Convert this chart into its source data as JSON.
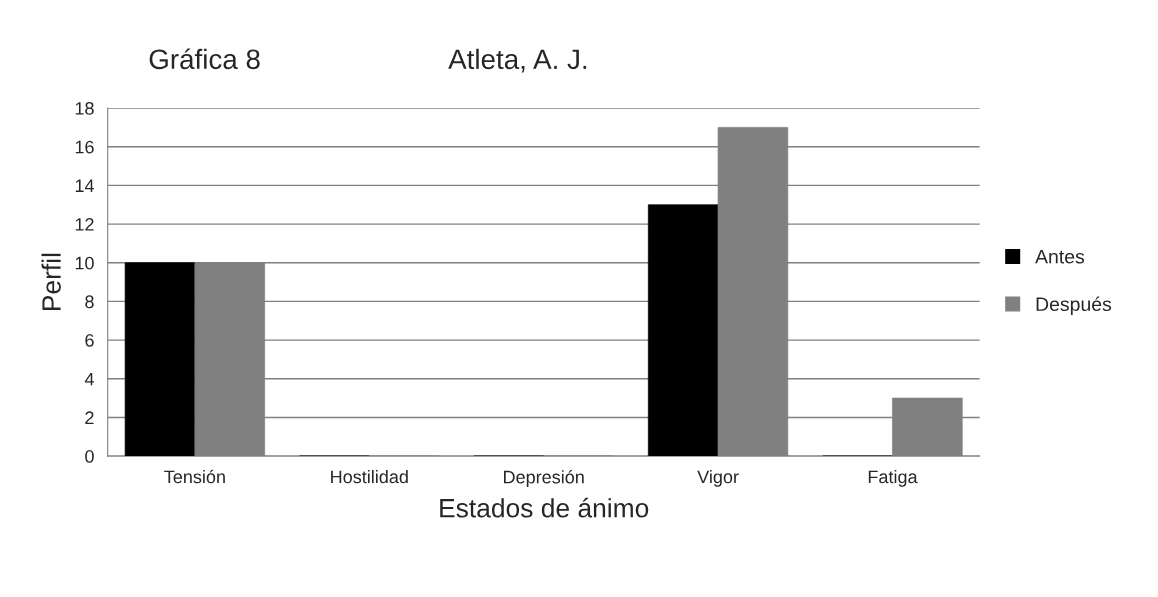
{
  "chart_data": {
    "type": "bar",
    "title": "Gráfica 8",
    "subtitle": "Atleta, A. J.",
    "xlabel": "Estados de ánimo",
    "ylabel": "Perfil",
    "categories": [
      "Tensión",
      "Hostilidad",
      "Depresión",
      "Vigor",
      "Fatiga"
    ],
    "series": [
      {
        "name": "Antes",
        "color": "#000000",
        "values": [
          10,
          0,
          0,
          13,
          0
        ]
      },
      {
        "name": "Después",
        "color": "#808080",
        "values": [
          10,
          0,
          0,
          17,
          3
        ]
      }
    ],
    "ylim": [
      0,
      18
    ],
    "yticks": [
      0,
      2,
      4,
      6,
      8,
      10,
      12,
      14,
      16,
      18
    ],
    "grid": "y",
    "legend": "right"
  }
}
